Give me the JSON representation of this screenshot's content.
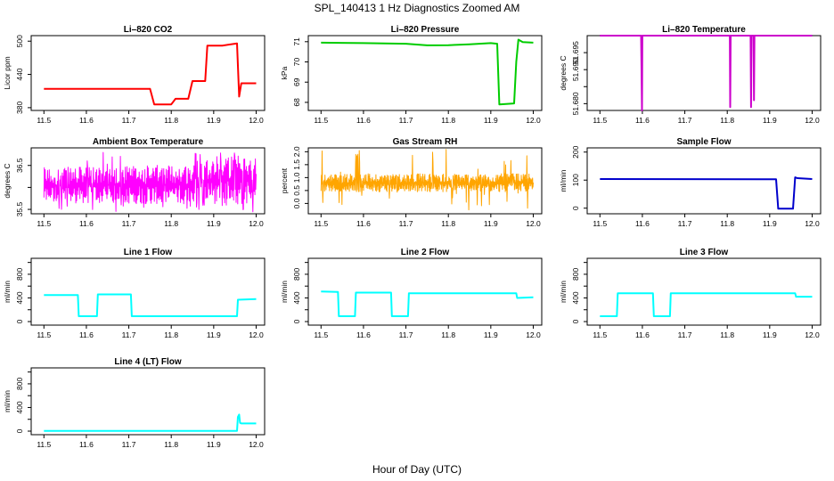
{
  "title": "SPL_140413  1 Hz Diagnostics Zoomed AM",
  "xlabel": "Hour of Day (UTC)",
  "chart_data": [
    {
      "type": "line",
      "title": "Li–820 CO2",
      "ylabel": "Licor ppm",
      "color": "#ff0000",
      "xlim": [
        11.47,
        12.02
      ],
      "ylim": [
        375,
        510
      ],
      "yticks": [
        380,
        440,
        500
      ],
      "yticks_minor": [],
      "x": [
        11.5,
        11.75,
        11.76,
        11.8,
        11.81,
        11.84,
        11.85,
        11.88,
        11.885,
        11.92,
        11.955,
        11.96,
        11.965,
        12.0
      ],
      "y": [
        414,
        414,
        386,
        386,
        396,
        396,
        428,
        428,
        492,
        492,
        496,
        400,
        424,
        424
      ]
    },
    {
      "type": "line",
      "title": "Li–820 Pressure",
      "ylabel": "kPa",
      "color": "#00cc00",
      "xlim": [
        11.47,
        12.02
      ],
      "ylim": [
        67.6,
        71.3
      ],
      "yticks": [
        68,
        69,
        70,
        71
      ],
      "yticks_minor": [],
      "x": [
        11.5,
        11.6,
        11.7,
        11.75,
        11.8,
        11.85,
        11.9,
        11.915,
        11.92,
        11.955,
        11.96,
        11.965,
        11.975,
        12.0
      ],
      "y": [
        70.95,
        70.93,
        70.9,
        70.82,
        70.83,
        70.87,
        70.93,
        70.9,
        67.9,
        67.95,
        70.0,
        71.1,
        70.98,
        70.95
      ]
    },
    {
      "type": "line",
      "title": "Li–820 Temperature",
      "ylabel": "degrees C",
      "color": "#cc00cc",
      "xlim": [
        11.47,
        12.02
      ],
      "ylim": [
        51.678,
        51.7
      ],
      "yticks": [
        51.68,
        51.69,
        51.695
      ],
      "ytick_labels": [
        "51.680",
        "51.690",
        "51.695"
      ],
      "yticks_minor": [
        51.685
      ],
      "x": [
        11.5,
        11.597,
        11.598,
        11.599,
        11.6,
        11.806,
        11.807,
        11.808,
        11.855,
        11.856,
        11.857,
        11.862,
        11.863,
        11.864,
        12.0
      ],
      "y": [
        51.7,
        51.7,
        51.69,
        51.678,
        51.7,
        51.7,
        51.679,
        51.7,
        51.7,
        51.679,
        51.7,
        51.7,
        51.681,
        51.7,
        51.7
      ]
    },
    {
      "type": "line",
      "title": "Ambient Box Temperature",
      "ylabel": "degrees C",
      "color": "#ff00ff",
      "xlim": [
        11.47,
        12.02
      ],
      "ylim": [
        35.4,
        36.9
      ],
      "yticks": [
        35.5,
        36.5
      ],
      "yticks_minor": [
        36.0
      ],
      "noise": {
        "n": 520,
        "x": [
          11.5,
          12.0
        ],
        "base_lo": [
          35.65,
          35.6
        ],
        "base_hi": [
          36.45,
          36.55
        ],
        "spike_lo": 35.42,
        "spike_hi": 36.8,
        "late_hi": 36.85
      }
    },
    {
      "type": "line",
      "title": "Gas Stream RH",
      "ylabel": "percent",
      "color": "#ffa500",
      "xlim": [
        11.47,
        12.02
      ],
      "ylim": [
        -0.4,
        2.15
      ],
      "yticks": [
        0.0,
        0.5,
        1.0,
        1.5,
        2.0
      ],
      "ytick_labels": [
        "0.0",
        "0.5",
        "1.0",
        "1.5",
        "2.0"
      ],
      "yticks_minor": [],
      "noise": {
        "n": 600,
        "x": [
          11.5,
          12.0
        ],
        "base_lo": [
          0.45,
          0.45
        ],
        "base_hi": [
          1.15,
          1.15
        ],
        "spike_lo": -0.35,
        "spike_hi": 2.1
      }
    },
    {
      "type": "line",
      "title": "Sample Flow",
      "ylabel": "ml/min",
      "color": "#0000cc",
      "xlim": [
        11.47,
        12.02
      ],
      "ylim": [
        -20,
        215
      ],
      "yticks": [
        0,
        100,
        200
      ],
      "yticks_minor": [],
      "x": [
        11.5,
        11.88,
        11.915,
        11.92,
        11.955,
        11.96,
        11.965,
        12.0
      ],
      "y": [
        104,
        103,
        103,
        -2,
        -2,
        110,
        107,
        104
      ]
    },
    {
      "type": "line",
      "title": "Line 1 Flow",
      "ylabel": "ml/min",
      "color": "#00ffff",
      "xlim": [
        11.47,
        12.02
      ],
      "ylim": [
        -60,
        1070
      ],
      "yticks": [
        0,
        400,
        800
      ],
      "yticks_minor": [
        200,
        600,
        1000
      ],
      "x": [
        11.5,
        11.58,
        11.582,
        11.625,
        11.627,
        11.705,
        11.707,
        11.955,
        11.957,
        12.0
      ],
      "y": [
        450,
        450,
        90,
        90,
        460,
        460,
        90,
        90,
        370,
        380
      ]
    },
    {
      "type": "line",
      "title": "Line 2 Flow",
      "ylabel": "ml/min",
      "color": "#00ffff",
      "xlim": [
        11.47,
        12.02
      ],
      "ylim": [
        -60,
        1070
      ],
      "yticks": [
        0,
        400,
        800
      ],
      "yticks_minor": [
        200,
        600,
        1000
      ],
      "x": [
        11.5,
        11.54,
        11.542,
        11.58,
        11.582,
        11.665,
        11.667,
        11.705,
        11.707,
        11.96,
        11.962,
        12.0
      ],
      "y": [
        510,
        500,
        90,
        90,
        490,
        490,
        90,
        90,
        480,
        480,
        400,
        410
      ]
    },
    {
      "type": "line",
      "title": "Line 3 Flow",
      "ylabel": "ml/min",
      "color": "#00ffff",
      "xlim": [
        11.47,
        12.02
      ],
      "ylim": [
        -60,
        1070
      ],
      "yticks": [
        0,
        400,
        800
      ],
      "yticks_minor": [
        200,
        600,
        1000
      ],
      "x": [
        11.5,
        11.54,
        11.542,
        11.625,
        11.627,
        11.665,
        11.667,
        11.96,
        11.962,
        12.0
      ],
      "y": [
        90,
        90,
        480,
        480,
        90,
        90,
        480,
        480,
        420,
        420
      ]
    },
    {
      "type": "line",
      "title": "Line 4 (LT) Flow",
      "ylabel": "ml/min",
      "color": "#00ffff",
      "xlim": [
        11.47,
        12.02
      ],
      "ylim": [
        -60,
        1070
      ],
      "yticks": [
        0,
        400,
        800
      ],
      "yticks_minor": [
        200,
        600,
        1000
      ],
      "x": [
        11.5,
        11.955,
        11.957,
        11.96,
        11.962,
        11.965,
        12.0
      ],
      "y": [
        5,
        5,
        240,
        280,
        140,
        130,
        130
      ]
    }
  ],
  "xticks": [
    11.5,
    11.6,
    11.7,
    11.8,
    11.9,
    12.0
  ],
  "xtick_labels": [
    "11.5",
    "11.6",
    "11.7",
    "11.8",
    "11.9",
    "12.0"
  ]
}
